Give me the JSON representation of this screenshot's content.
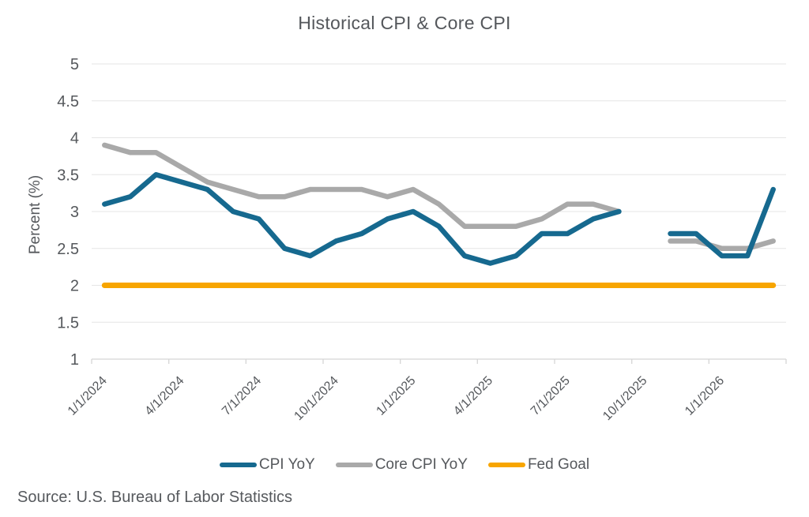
{
  "source": "Source: U.S. Bureau of Labor Statistics",
  "chart_data": {
    "type": "line",
    "title": "Historical CPI & Core CPI",
    "ylabel": "Percent (%)",
    "ylim": [
      1,
      5
    ],
    "ytick_step": 0.5,
    "ytick_labels": [
      "5",
      "4.5",
      "4",
      "3.5",
      "3",
      "2.5",
      "2",
      "1.5",
      "1"
    ],
    "grid": "horizontal",
    "legend_position": "bottom",
    "x": [
      "1/1/2024",
      "2/1/2024",
      "3/1/2024",
      "4/1/2024",
      "5/1/2024",
      "6/1/2024",
      "7/1/2024",
      "8/1/2024",
      "9/1/2024",
      "10/1/2024",
      "11/1/2024",
      "12/1/2024",
      "1/1/2025",
      "2/1/2025",
      "3/1/2025",
      "4/1/2025",
      "5/1/2025",
      "6/1/2025",
      "7/1/2025",
      "8/1/2025",
      "9/1/2025",
      "10/1/2025",
      "11/1/2025",
      "12/1/2025",
      "1/1/2026",
      "2/1/2026",
      "3/1/2026"
    ],
    "x_tick_labels": [
      "1/1/2024",
      "4/1/2024",
      "7/1/2024",
      "10/1/2024",
      "1/1/2025",
      "4/1/2025",
      "7/1/2025",
      "10/1/2025",
      "1/1/2026"
    ],
    "series": [
      {
        "name": "CPI YoY",
        "color": "#16698F",
        "values": [
          3.1,
          3.2,
          3.5,
          3.4,
          3.3,
          3.0,
          2.9,
          2.5,
          2.4,
          2.6,
          2.7,
          2.9,
          3.0,
          2.8,
          2.4,
          2.3,
          2.4,
          2.7,
          2.7,
          2.9,
          3.0,
          null,
          2.7,
          2.7,
          2.4,
          2.4,
          3.3
        ]
      },
      {
        "name": "Core CPI YoY",
        "color": "#A9A9A9",
        "values": [
          3.9,
          3.8,
          3.8,
          3.6,
          3.4,
          3.3,
          3.2,
          3.2,
          3.3,
          3.3,
          3.3,
          3.2,
          3.3,
          3.1,
          2.8,
          2.8,
          2.8,
          2.9,
          3.1,
          3.1,
          3.0,
          null,
          2.6,
          2.6,
          2.5,
          2.5,
          2.6
        ]
      },
      {
        "name": "Fed Goal",
        "color": "#F7A500",
        "values": [
          2,
          2,
          2,
          2,
          2,
          2,
          2,
          2,
          2,
          2,
          2,
          2,
          2,
          2,
          2,
          2,
          2,
          2,
          2,
          2,
          2,
          2,
          2,
          2,
          2,
          2,
          2
        ]
      }
    ]
  }
}
